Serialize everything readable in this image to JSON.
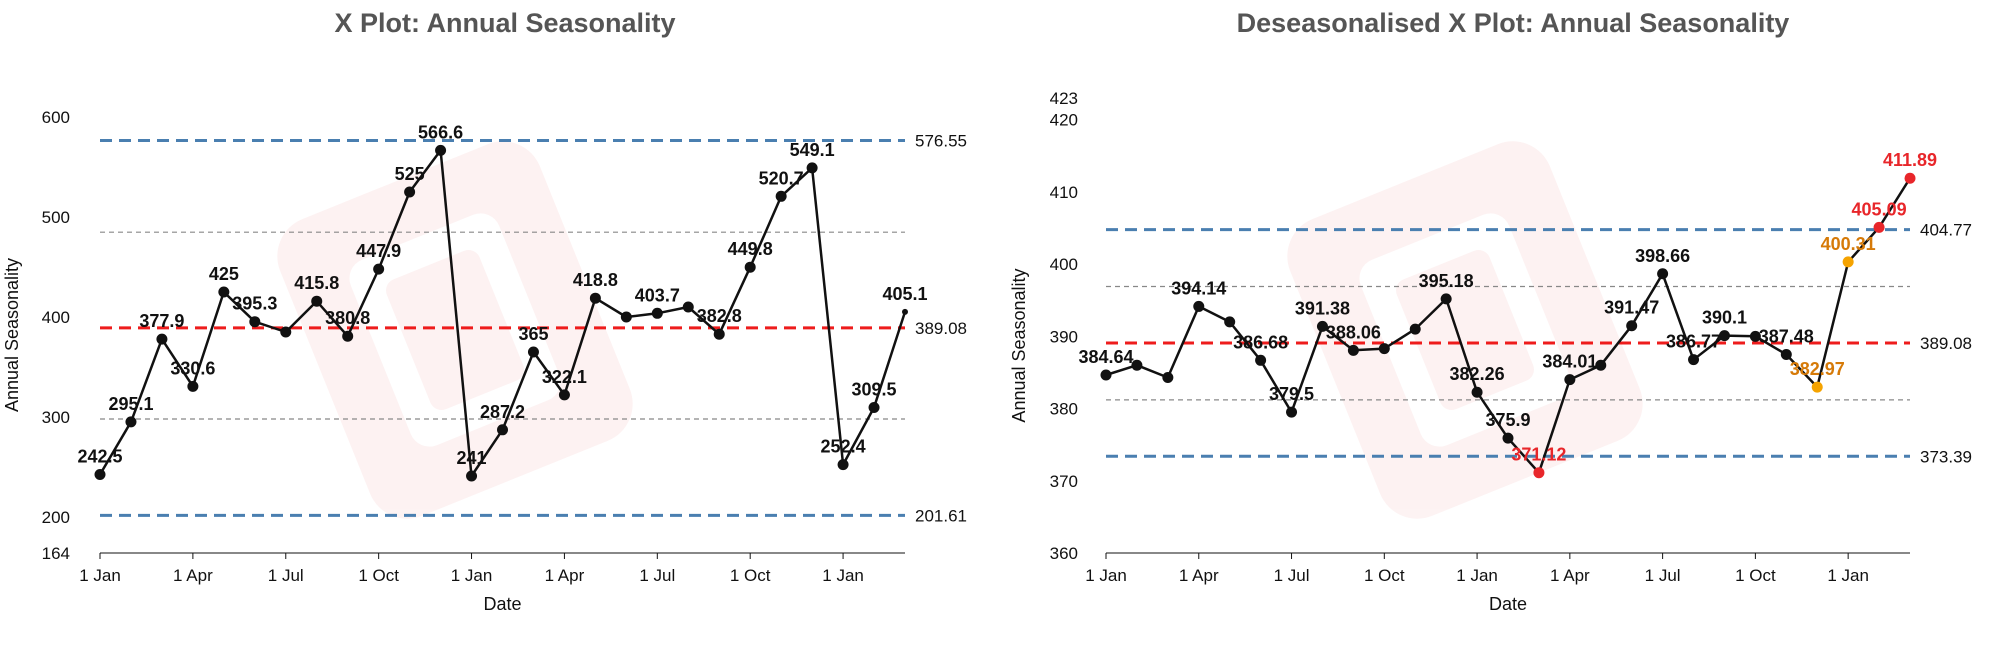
{
  "chart_data": [
    {
      "type": "line",
      "title": "X Plot: Annual Seasonality",
      "xlabel": "Date",
      "ylabel": "Annual Seasonality",
      "x_ticks": [
        "1 Jan",
        "1 Apr",
        "1 Jul",
        "1 Oct",
        "1 Jan",
        "1 Apr",
        "1 Jul",
        "1 Oct",
        "1 Jan"
      ],
      "y_ticks": [
        "164",
        "200",
        "300",
        "400",
        "500",
        "600"
      ],
      "ylim": [
        164,
        640
      ],
      "grid": false,
      "x": [
        "Y1-01",
        "Y1-02",
        "Y1-03",
        "Y1-04",
        "Y1-05",
        "Y1-06",
        "Y1-07",
        "Y1-08",
        "Y1-09",
        "Y1-10",
        "Y1-11",
        "Y1-12",
        "Y2-01",
        "Y2-02",
        "Y2-03",
        "Y2-04",
        "Y2-05",
        "Y2-06",
        "Y2-07",
        "Y2-08",
        "Y2-09",
        "Y2-10",
        "Y2-11",
        "Y2-12",
        "Y3-01",
        "Y3-02",
        "Y3-03"
      ],
      "values": [
        242.5,
        295.1,
        377.9,
        330.6,
        425,
        395.3,
        385,
        415.8,
        380.8,
        447.9,
        525,
        566.6,
        241,
        287.2,
        365,
        322.1,
        418.8,
        400,
        403.7,
        410,
        382.8,
        449.8,
        520.7,
        549.1,
        252.4,
        309.5,
        405.1
      ],
      "point_labels": [
        "242.5",
        "295.1",
        "377.9",
        "330.6",
        "425",
        "395.3",
        "",
        "415.8",
        "380.8",
        "447.9",
        "525",
        "566.6",
        "241",
        "287.2",
        "365",
        "322.1",
        "418.8",
        "",
        "403.7",
        "",
        "382.8",
        "449.8",
        "520.7",
        "549.1",
        "252.4",
        "309.5",
        "405.1"
      ],
      "reference_lines": [
        {
          "value": 576.55,
          "label": "576.55",
          "role": "upper-limit",
          "color": "#4a7fb0",
          "style": "dashed"
        },
        {
          "value": 484.8,
          "label": "",
          "role": "upper-band",
          "color": "#888888",
          "style": "dashed"
        },
        {
          "value": 389.08,
          "label": "389.08",
          "role": "mean",
          "color": "#ee1c1c",
          "style": "dashed"
        },
        {
          "value": 298,
          "label": "",
          "role": "lower-band",
          "color": "#888888",
          "style": "dashed"
        },
        {
          "value": 201.61,
          "label": "201.61",
          "role": "lower-limit",
          "color": "#4a7fb0",
          "style": "dashed"
        }
      ],
      "colors": {
        "line": "#111111",
        "point": "#111111",
        "label": "#111111"
      }
    },
    {
      "type": "line",
      "title": "Deseasonalised X Plot: Annual Seasonality",
      "xlabel": "Date",
      "ylabel": "Annual Seasonality",
      "x_ticks": [
        "1 Jan",
        "1 Apr",
        "1 Jul",
        "1 Oct",
        "1 Jan",
        "1 Apr",
        "1 Jul",
        "1 Oct",
        "1 Jan"
      ],
      "y_ticks": [
        "360",
        "370",
        "380",
        "390",
        "400",
        "410",
        "420",
        "423"
      ],
      "ylim": [
        360,
        423
      ],
      "grid": false,
      "x": [
        "Y1-01",
        "Y1-02",
        "Y1-03",
        "Y1-04",
        "Y1-05",
        "Y1-06",
        "Y1-07",
        "Y1-08",
        "Y1-09",
        "Y1-10",
        "Y1-11",
        "Y1-12",
        "Y2-01",
        "Y2-02",
        "Y2-03",
        "Y2-04",
        "Y2-05",
        "Y2-06",
        "Y2-07",
        "Y2-08",
        "Y2-09",
        "Y2-10",
        "Y2-11",
        "Y2-12",
        "Y3-01",
        "Y3-02",
        "Y3-03"
      ],
      "values": [
        384.64,
        386.0,
        384.3,
        394.14,
        392.0,
        386.68,
        379.5,
        391.38,
        388.06,
        388.3,
        391.0,
        395.18,
        382.26,
        375.9,
        371.12,
        384.01,
        386.0,
        391.47,
        398.66,
        386.77,
        390.1,
        390.0,
        387.48,
        382.97,
        400.31,
        405.09,
        411.89
      ],
      "point_labels": [
        "384.64",
        "",
        "",
        "394.14",
        "",
        "386.68",
        "379.5",
        "391.38",
        "388.06",
        "",
        "",
        "395.18",
        "382.26",
        "375.9",
        "371.12",
        "384.01",
        "",
        "391.47",
        "398.66",
        "386.77",
        "390.1",
        "",
        "387.48",
        "382.97",
        "400.31",
        "405.09",
        "411.89"
      ],
      "point_status": [
        "normal",
        "normal",
        "normal",
        "normal",
        "normal",
        "normal",
        "normal",
        "normal",
        "normal",
        "normal",
        "normal",
        "normal",
        "normal",
        "normal",
        "signal",
        "normal",
        "normal",
        "normal",
        "normal",
        "normal",
        "normal",
        "normal",
        "normal",
        "warning",
        "warning",
        "signal",
        "signal"
      ],
      "reference_lines": [
        {
          "value": 404.77,
          "label": "404.77",
          "role": "upper-limit",
          "color": "#4a7fb0",
          "style": "dashed"
        },
        {
          "value": 396.9,
          "label": "",
          "role": "upper-band",
          "color": "#888888",
          "style": "dashed"
        },
        {
          "value": 389.08,
          "label": "389.08",
          "role": "mean",
          "color": "#ee1c1c",
          "style": "dashed"
        },
        {
          "value": 381.2,
          "label": "",
          "role": "lower-band",
          "color": "#888888",
          "style": "dashed"
        },
        {
          "value": 373.39,
          "label": "373.39",
          "role": "lower-limit",
          "color": "#4a7fb0",
          "style": "dashed"
        }
      ],
      "colors": {
        "line": "#111111",
        "normal": "#111111",
        "signal": "#e8262a",
        "warning": "#f5a300",
        "signal_label": "#e8262a",
        "warning_label": "#d67a08"
      }
    }
  ]
}
